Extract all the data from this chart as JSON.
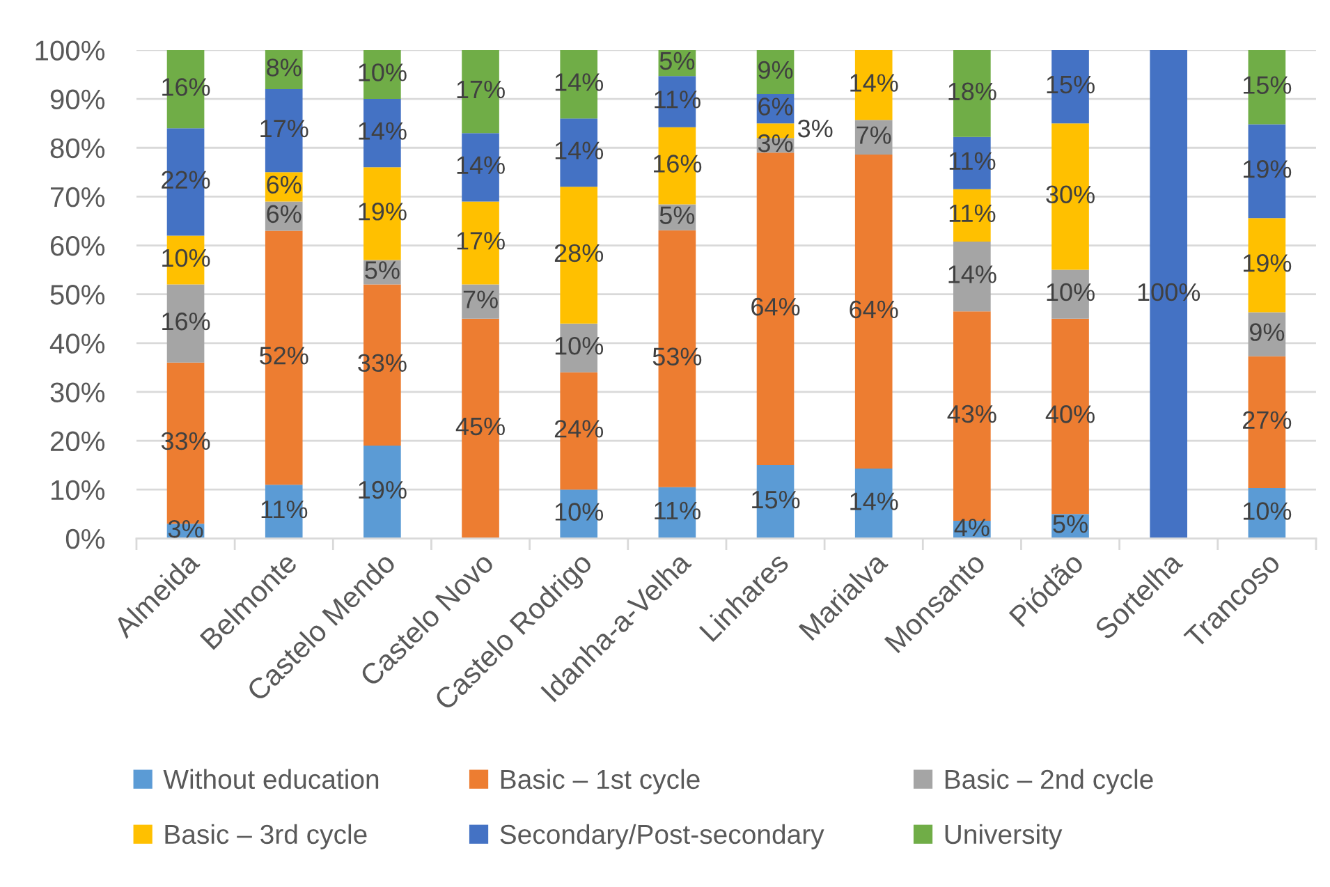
{
  "chart_data": {
    "type": "bar",
    "stacked": true,
    "categories": [
      "Almeida",
      "Belmonte",
      "Castelo Mendo",
      "Castelo Novo",
      "Castelo Rodrigo",
      "Idanha-a-Velha",
      "Linhares",
      "Marialva",
      "Monsanto",
      "Piódão",
      "Sortelha",
      "Trancoso"
    ],
    "series": [
      {
        "name": "Without education",
        "color": "#5b9bd5",
        "values": [
          3,
          11,
          19,
          null,
          10,
          10.5,
          15,
          14.3,
          3.6,
          5,
          null,
          10.3
        ],
        "value_labels": [
          "3%",
          "11%",
          "19%",
          null,
          "10%",
          "11%",
          "15%",
          "14%",
          "4%",
          "5%",
          null,
          "10%"
        ]
      },
      {
        "name": "Basic – 1st cycle",
        "color": "#ed7d31",
        "values": [
          33,
          52,
          33,
          45,
          24,
          52.6,
          64,
          64.3,
          42.9,
          40,
          null,
          27.0
        ],
        "value_labels": [
          "33%",
          "52%",
          "33%",
          "45%",
          "24%",
          "53%",
          "64%",
          "64%",
          "43%",
          "40%",
          null,
          "27%"
        ]
      },
      {
        "name": "Basic – 2nd cycle",
        "color": "#a5a5a5",
        "values": [
          16,
          6,
          5,
          7,
          10,
          5.3,
          3,
          7.1,
          14.3,
          10,
          null,
          9.0
        ],
        "value_labels": [
          "16%",
          "6%",
          "5%",
          "7%",
          "10%",
          "5%",
          "3%",
          "7%",
          "14%",
          "10%",
          null,
          "9%"
        ]
      },
      {
        "name": "Basic – 3rd cycle",
        "color": "#ffc000",
        "values": [
          10,
          6,
          19,
          17,
          28,
          15.8,
          3,
          14.3,
          10.7,
          30,
          null,
          19.3
        ],
        "value_labels": [
          "10%",
          "6%",
          "19%",
          "17%",
          "28%",
          "16%",
          "3%",
          "14%",
          "11%",
          "30%",
          null,
          "19%"
        ]
      },
      {
        "name": "Secondary/Post-secondary",
        "color": "#4472c4",
        "values": [
          22,
          17,
          14,
          14,
          14,
          10.5,
          6,
          null,
          10.7,
          15,
          100,
          19.2
        ],
        "value_labels": [
          "22%",
          "17%",
          "14%",
          "14%",
          "14%",
          "11%",
          "6%",
          null,
          "11%",
          "15%",
          "100%",
          "19%"
        ]
      },
      {
        "name": "University",
        "color": "#70ad47",
        "values": [
          16,
          8,
          10,
          17,
          14,
          5.3,
          9,
          null,
          17.8,
          null,
          null,
          15.2
        ],
        "value_labels": [
          "16%",
          "8%",
          "10%",
          "17%",
          "14%",
          "5%",
          "9%",
          null,
          "18%",
          null,
          null,
          "15%"
        ]
      }
    ],
    "ylim": [
      0,
      100
    ],
    "yticks": [
      {
        "value": 0,
        "label": "0%"
      },
      {
        "value": 10,
        "label": "10%"
      },
      {
        "value": 20,
        "label": "20%"
      },
      {
        "value": 30,
        "label": "30%"
      },
      {
        "value": 40,
        "label": "40%"
      },
      {
        "value": 50,
        "label": "50%"
      },
      {
        "value": 60,
        "label": "60%"
      },
      {
        "value": 70,
        "label": "70%"
      },
      {
        "value": 80,
        "label": "80%"
      },
      {
        "value": 90,
        "label": "90%"
      },
      {
        "value": 100,
        "label": "100%"
      }
    ],
    "grid": "y",
    "legend": "bottom"
  }
}
